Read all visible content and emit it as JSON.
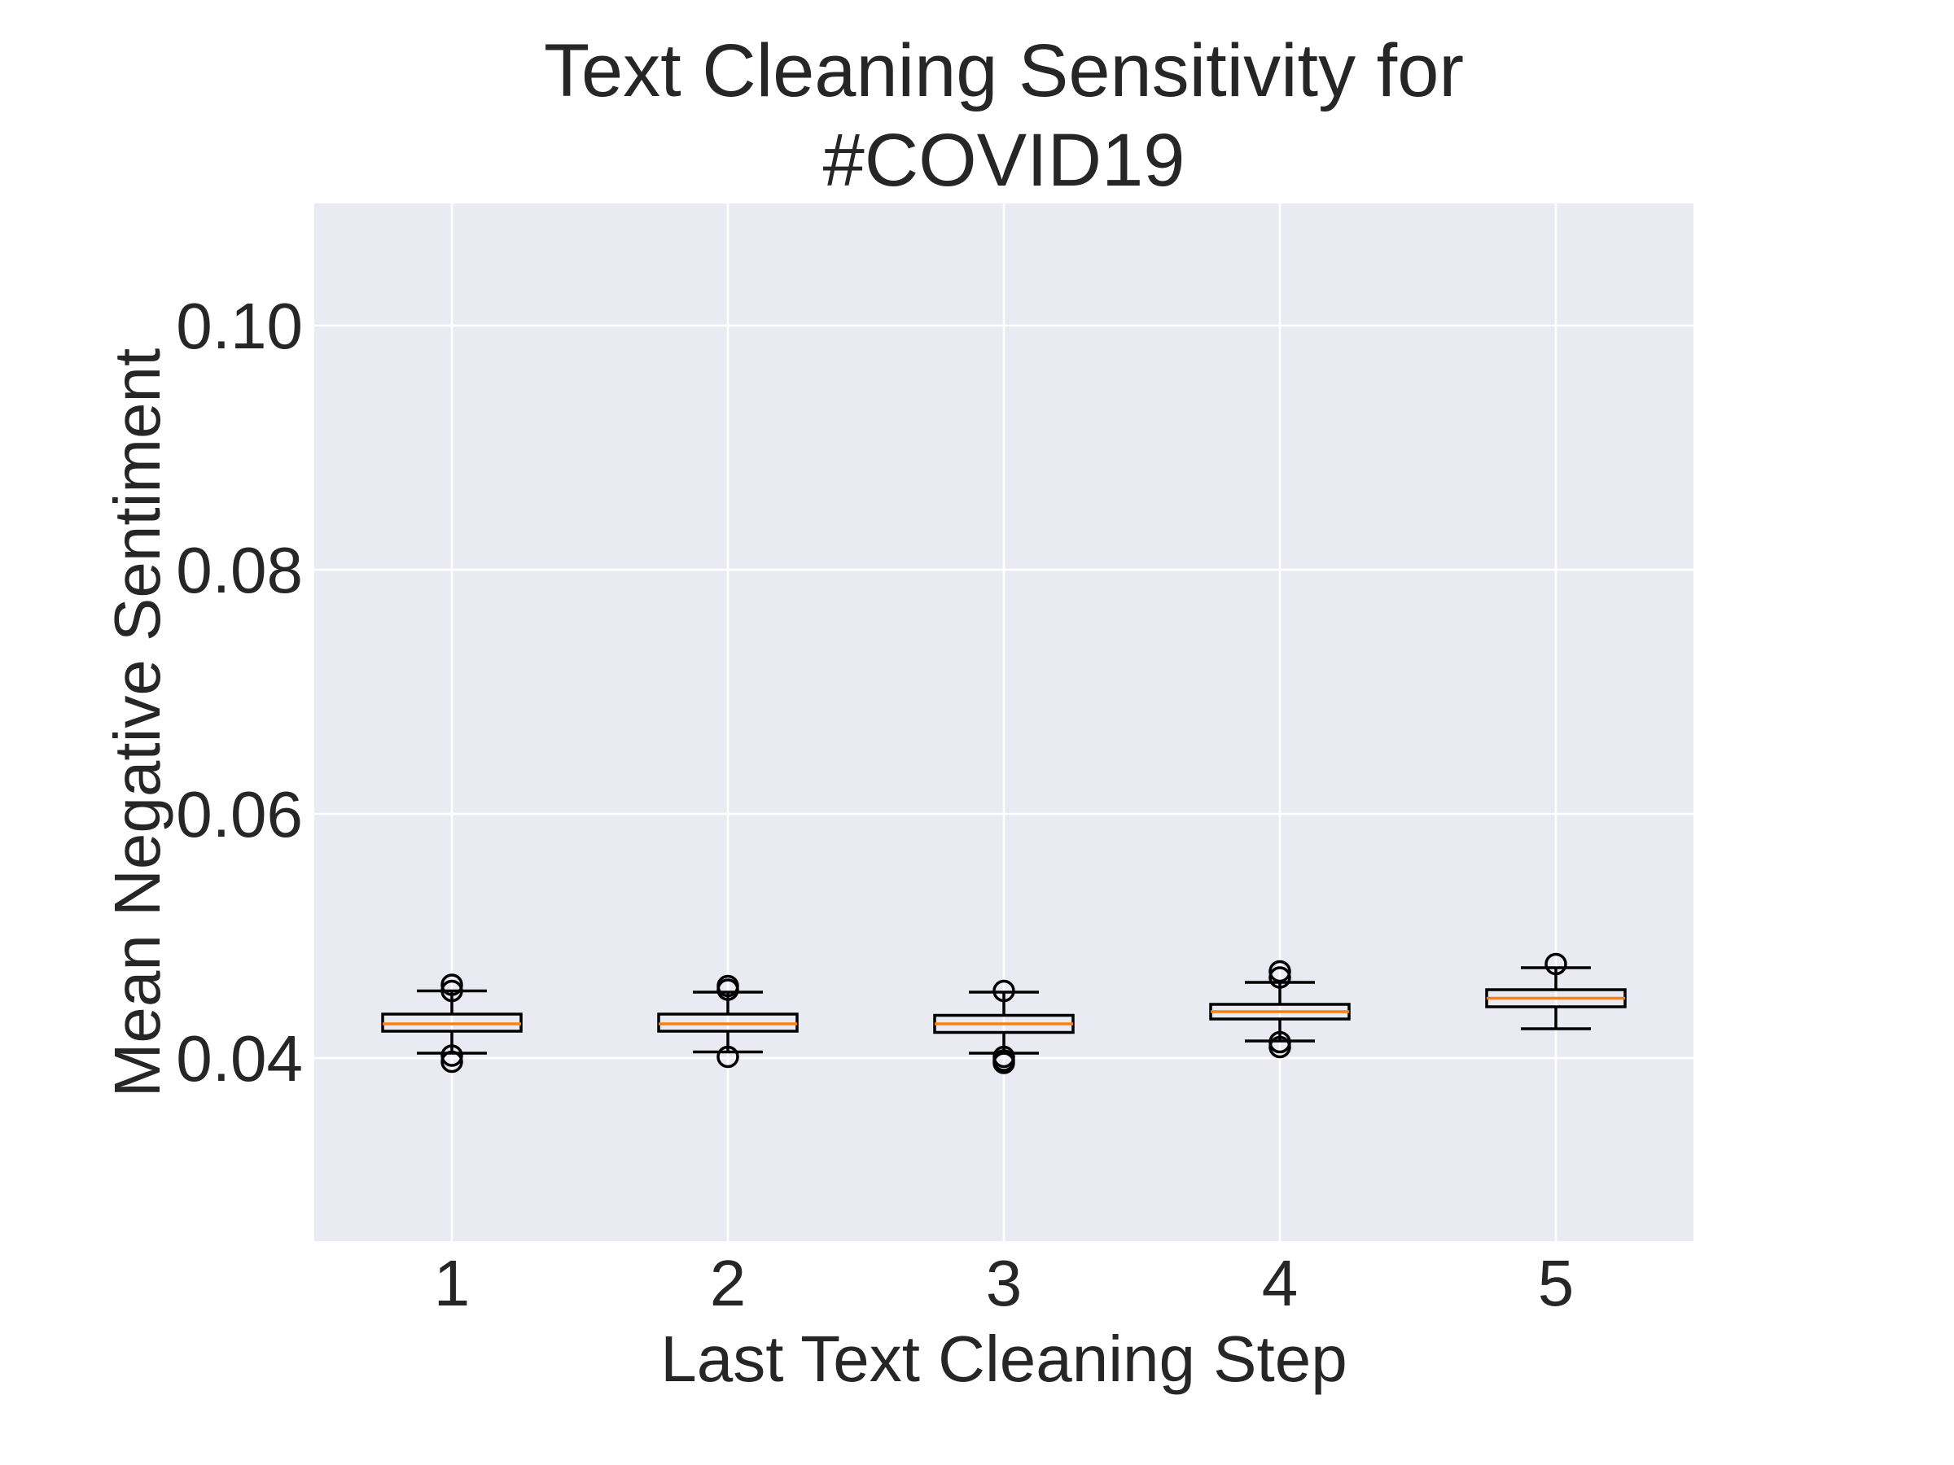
{
  "chart_data": {
    "type": "box",
    "title_lines": [
      "Text Cleaning Sensitivity for",
      "#COVID19"
    ],
    "xlabel": "Last Text Cleaning Step",
    "ylabel": "Mean Negative Sentiment",
    "x_ticks": [
      "1",
      "2",
      "3",
      "4",
      "5"
    ],
    "y_ticks": [
      "0.04",
      "0.06",
      "0.08",
      "0.10"
    ],
    "y_tick_values": [
      0.04,
      0.06,
      0.08,
      0.1
    ],
    "ylim": [
      0.025,
      0.11
    ],
    "grid": true,
    "boxes": [
      {
        "category": "1",
        "whisker_low": 0.0404,
        "q1": 0.0422,
        "median": 0.0428,
        "q3": 0.0436,
        "whisker_high": 0.0455,
        "outliers": [
          0.0397,
          0.0402,
          0.0455,
          0.046
        ]
      },
      {
        "category": "2",
        "whisker_low": 0.0405,
        "q1": 0.0422,
        "median": 0.0428,
        "q3": 0.0436,
        "whisker_high": 0.0454,
        "outliers": [
          0.0401,
          0.0456,
          0.0459
        ]
      },
      {
        "category": "3",
        "whisker_low": 0.0404,
        "q1": 0.0421,
        "median": 0.0428,
        "q3": 0.0435,
        "whisker_high": 0.0454,
        "outliers": [
          0.0396,
          0.0398,
          0.0401,
          0.0455
        ]
      },
      {
        "category": "4",
        "whisker_low": 0.0414,
        "q1": 0.0432,
        "median": 0.0438,
        "q3": 0.0444,
        "whisker_high": 0.0462,
        "outliers": [
          0.0409,
          0.0413,
          0.0466,
          0.0471
        ]
      },
      {
        "category": "5",
        "whisker_low": 0.0424,
        "q1": 0.0442,
        "median": 0.0449,
        "q3": 0.0456,
        "whisker_high": 0.0474,
        "outliers": [
          0.0477
        ]
      }
    ],
    "colors": {
      "plot_background": "#eaeaf2",
      "grid": "#ffffff",
      "box": "#000000",
      "median": "#ff7f0e",
      "text": "#262626"
    }
  }
}
